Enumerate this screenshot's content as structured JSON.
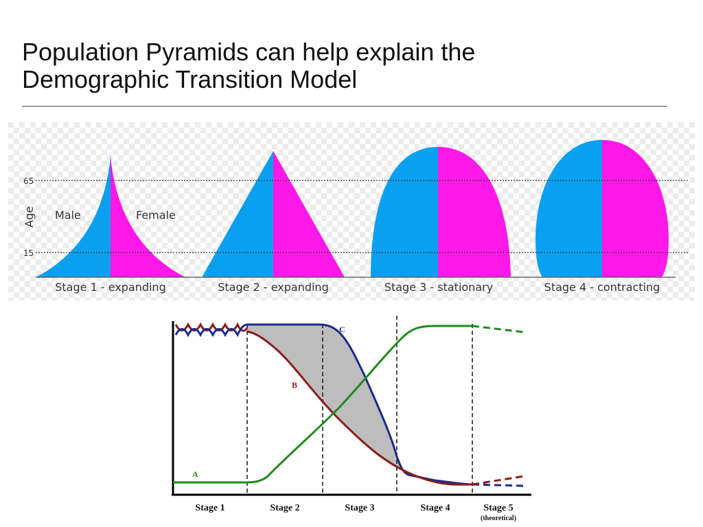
{
  "slide": {
    "title": "Population Pyramids can help explain the\nDemographic Transition Model"
  },
  "pyramids": {
    "age_axis_label": "Age",
    "age_lines": [
      "65",
      "15"
    ],
    "male_label": "Male",
    "female_label": "Female",
    "stages": [
      {
        "label": "Stage 1 - expanding",
        "shape": "concave-peak"
      },
      {
        "label": "Stage 2 - expanding",
        "shape": "triangle"
      },
      {
        "label": "Stage 3 - stationary",
        "shape": "dome"
      },
      {
        "label": "Stage 4 - contracting",
        "shape": "bulged-dome"
      }
    ],
    "colors": {
      "male": "#0aa0f0",
      "female": "#ff18e8",
      "background": "#eeeeee"
    }
  },
  "dtm": {
    "series": [
      {
        "name": "A",
        "color": "#1d8a1d"
      },
      {
        "name": "B",
        "color": "#8b1a1a"
      },
      {
        "name": "C",
        "color": "#1a2a8a"
      }
    ],
    "stages": [
      "Stage 1",
      "Stage 2",
      "Stage 3",
      "Stage 4",
      "Stage 5"
    ],
    "stage5_note": "(theoretical)",
    "shading_color": "#bdbdbd"
  }
}
